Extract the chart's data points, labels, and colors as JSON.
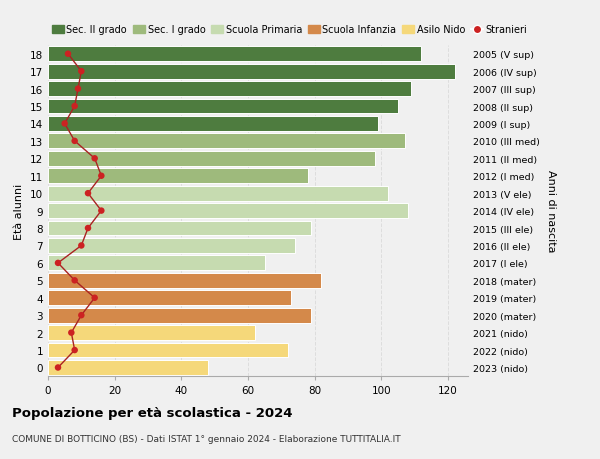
{
  "ages": [
    0,
    1,
    2,
    3,
    4,
    5,
    6,
    7,
    8,
    9,
    10,
    11,
    12,
    13,
    14,
    15,
    16,
    17,
    18
  ],
  "bar_values": [
    48,
    72,
    62,
    79,
    73,
    82,
    65,
    74,
    79,
    108,
    102,
    78,
    98,
    107,
    99,
    105,
    109,
    122,
    112
  ],
  "bar_colors": [
    "#f5d87a",
    "#f5d87a",
    "#f5d87a",
    "#d4894a",
    "#d4894a",
    "#d4894a",
    "#c6dbb0",
    "#c6dbb0",
    "#c6dbb0",
    "#c6dbb0",
    "#c6dbb0",
    "#9eba7c",
    "#9eba7c",
    "#9eba7c",
    "#4e7c3f",
    "#4e7c3f",
    "#4e7c3f",
    "#4e7c3f",
    "#4e7c3f"
  ],
  "stranieri_values": [
    3,
    8,
    7,
    10,
    14,
    8,
    3,
    10,
    12,
    16,
    12,
    16,
    14,
    8,
    5,
    8,
    9,
    10,
    6
  ],
  "right_labels": [
    "2023 (nido)",
    "2022 (nido)",
    "2021 (nido)",
    "2020 (mater)",
    "2019 (mater)",
    "2018 (mater)",
    "2017 (I ele)",
    "2016 (II ele)",
    "2015 (III ele)",
    "2014 (IV ele)",
    "2013 (V ele)",
    "2012 (I med)",
    "2011 (II med)",
    "2010 (III med)",
    "2009 (I sup)",
    "2008 (II sup)",
    "2007 (III sup)",
    "2006 (IV sup)",
    "2005 (V sup)"
  ],
  "legend_labels": [
    "Sec. II grado",
    "Sec. I grado",
    "Scuola Primaria",
    "Scuola Infanzia",
    "Asilo Nido",
    "Stranieri"
  ],
  "legend_colors": [
    "#4e7c3f",
    "#9eba7c",
    "#c6dbb0",
    "#d4894a",
    "#f5d87a",
    "#cc2222"
  ],
  "ylabel_left": "Età alunni",
  "ylabel_right": "Anni di nascita",
  "title": "Popolazione per età scolastica - 2024",
  "subtitle": "COMUNE DI BOTTICINO (BS) - Dati ISTAT 1° gennaio 2024 - Elaborazione TUTTITALIA.IT",
  "xlim": [
    0,
    126
  ],
  "bg_color": "#f0f0f0",
  "stranieri_color": "#cc2222",
  "stranieri_line_color": "#aa2222",
  "grid_color": "#dddddd"
}
